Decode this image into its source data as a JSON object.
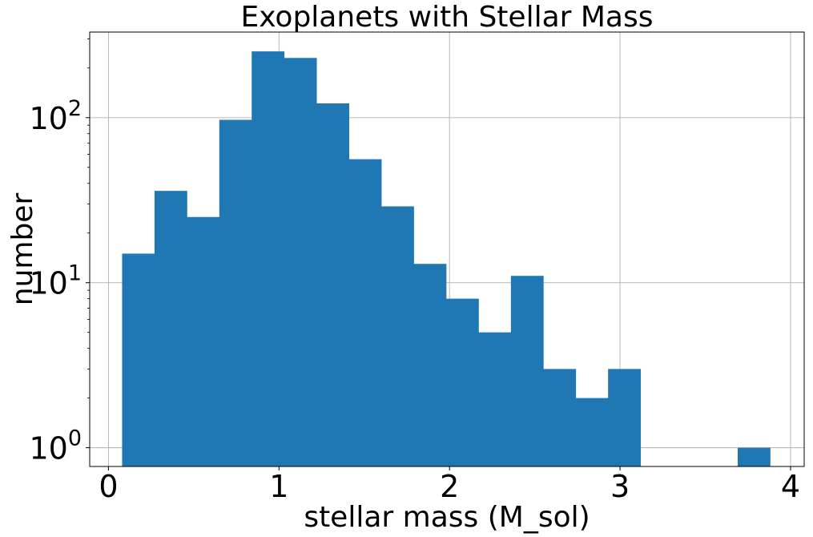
{
  "chart_data": {
    "type": "bar",
    "title": "Exoplanets with Stellar Mass",
    "xlabel": "stellar mass (M_sol)",
    "ylabel": "number",
    "y_scale": "log",
    "xlim": [
      -0.11,
      4.08
    ],
    "ylim": [
      0.77,
      330
    ],
    "grid": true,
    "bar_color": "#1f77b4",
    "x_ticks": [
      {
        "value": 0,
        "label": "0"
      },
      {
        "value": 1,
        "label": "1"
      },
      {
        "value": 2,
        "label": "2"
      },
      {
        "value": 3,
        "label": "3"
      },
      {
        "value": 4,
        "label": "4"
      }
    ],
    "y_ticks": [
      {
        "value": 1,
        "base": "10",
        "exp": "0"
      },
      {
        "value": 10,
        "base": "10",
        "exp": "1"
      },
      {
        "value": 100,
        "base": "10",
        "exp": "2"
      }
    ],
    "bins": [
      {
        "x0": 0.08,
        "x1": 0.27,
        "count": 15
      },
      {
        "x0": 0.27,
        "x1": 0.46,
        "count": 36
      },
      {
        "x0": 0.46,
        "x1": 0.65,
        "count": 25
      },
      {
        "x0": 0.65,
        "x1": 0.84,
        "count": 97
      },
      {
        "x0": 0.84,
        "x1": 1.03,
        "count": 252
      },
      {
        "x0": 1.03,
        "x1": 1.22,
        "count": 230
      },
      {
        "x0": 1.22,
        "x1": 1.41,
        "count": 122
      },
      {
        "x0": 1.41,
        "x1": 1.6,
        "count": 56
      },
      {
        "x0": 1.6,
        "x1": 1.79,
        "count": 29
      },
      {
        "x0": 1.79,
        "x1": 1.98,
        "count": 13
      },
      {
        "x0": 1.98,
        "x1": 2.17,
        "count": 8
      },
      {
        "x0": 2.17,
        "x1": 2.36,
        "count": 5
      },
      {
        "x0": 2.36,
        "x1": 2.55,
        "count": 11
      },
      {
        "x0": 2.55,
        "x1": 2.74,
        "count": 3
      },
      {
        "x0": 2.74,
        "x1": 2.93,
        "count": 2
      },
      {
        "x0": 2.93,
        "x1": 3.12,
        "count": 3
      },
      {
        "x0": 3.12,
        "x1": 3.31,
        "count": 0
      },
      {
        "x0": 3.31,
        "x1": 3.5,
        "count": 0
      },
      {
        "x0": 3.5,
        "x1": 3.69,
        "count": 0
      },
      {
        "x0": 3.69,
        "x1": 3.88,
        "count": 1
      }
    ]
  }
}
